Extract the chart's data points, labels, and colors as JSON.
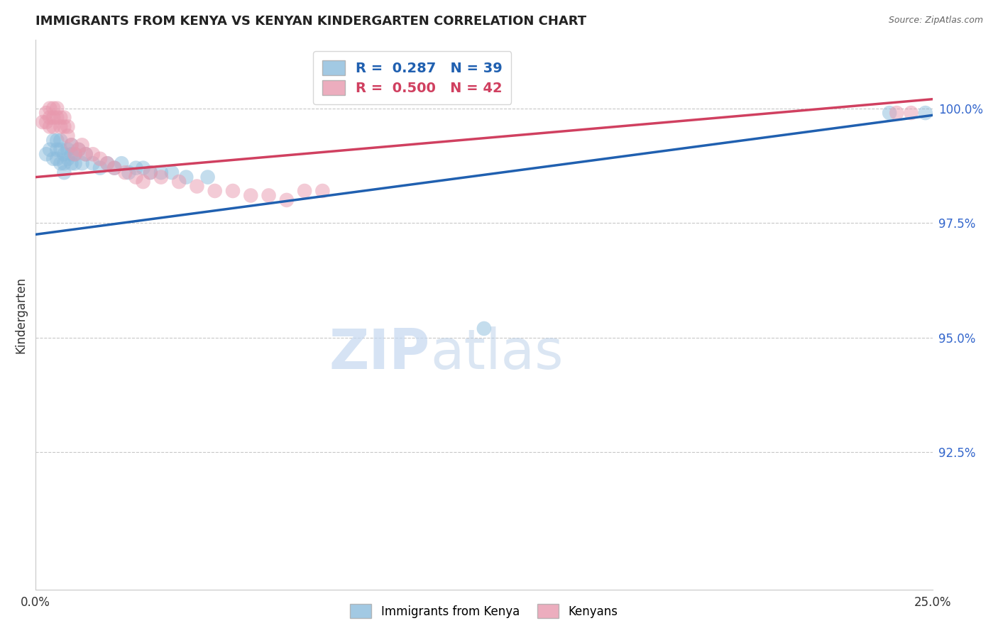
{
  "title": "IMMIGRANTS FROM KENYA VS KENYAN KINDERGARTEN CORRELATION CHART",
  "source": "Source: ZipAtlas.com",
  "ylabel": "Kindergarten",
  "xlim": [
    0.0,
    0.25
  ],
  "ylim": [
    0.895,
    1.015
  ],
  "ytick_vals": [
    0.925,
    0.95,
    0.975,
    1.0
  ],
  "ytick_labels": [
    "92.5%",
    "95.0%",
    "97.5%",
    "100.0%"
  ],
  "legend_blue": "R =  0.287   N = 39",
  "legend_pink": "R =  0.500   N = 42",
  "blue_color": "#8bbcdd",
  "pink_color": "#e899ae",
  "trendline_blue": "#2060b0",
  "trendline_pink": "#d04060",
  "watermark_zip": "ZIP",
  "watermark_atlas": "atlas",
  "blue_scatter": [
    [
      0.003,
      0.99
    ],
    [
      0.004,
      0.991
    ],
    [
      0.005,
      0.993
    ],
    [
      0.005,
      0.989
    ],
    [
      0.006,
      0.993
    ],
    [
      0.006,
      0.991
    ],
    [
      0.006,
      0.989
    ],
    [
      0.007,
      0.993
    ],
    [
      0.007,
      0.991
    ],
    [
      0.007,
      0.988
    ],
    [
      0.008,
      0.99
    ],
    [
      0.008,
      0.988
    ],
    [
      0.008,
      0.986
    ],
    [
      0.009,
      0.991
    ],
    [
      0.009,
      0.989
    ],
    [
      0.01,
      0.992
    ],
    [
      0.01,
      0.99
    ],
    [
      0.01,
      0.988
    ],
    [
      0.011,
      0.99
    ],
    [
      0.011,
      0.988
    ],
    [
      0.012,
      0.991
    ],
    [
      0.013,
      0.988
    ],
    [
      0.014,
      0.99
    ],
    [
      0.016,
      0.988
    ],
    [
      0.018,
      0.987
    ],
    [
      0.02,
      0.988
    ],
    [
      0.022,
      0.987
    ],
    [
      0.024,
      0.988
    ],
    [
      0.026,
      0.986
    ],
    [
      0.028,
      0.987
    ],
    [
      0.03,
      0.987
    ],
    [
      0.032,
      0.986
    ],
    [
      0.035,
      0.986
    ],
    [
      0.038,
      0.986
    ],
    [
      0.042,
      0.985
    ],
    [
      0.048,
      0.985
    ],
    [
      0.125,
      0.952
    ],
    [
      0.238,
      0.999
    ],
    [
      0.248,
      0.999
    ]
  ],
  "pink_scatter": [
    [
      0.002,
      0.997
    ],
    [
      0.003,
      0.999
    ],
    [
      0.003,
      0.997
    ],
    [
      0.004,
      1.0
    ],
    [
      0.004,
      0.998
    ],
    [
      0.004,
      0.996
    ],
    [
      0.005,
      1.0
    ],
    [
      0.005,
      0.998
    ],
    [
      0.005,
      0.996
    ],
    [
      0.006,
      1.0
    ],
    [
      0.006,
      0.998
    ],
    [
      0.007,
      0.998
    ],
    [
      0.007,
      0.996
    ],
    [
      0.008,
      0.998
    ],
    [
      0.008,
      0.996
    ],
    [
      0.009,
      0.996
    ],
    [
      0.009,
      0.994
    ],
    [
      0.01,
      0.992
    ],
    [
      0.011,
      0.99
    ],
    [
      0.012,
      0.991
    ],
    [
      0.013,
      0.992
    ],
    [
      0.014,
      0.99
    ],
    [
      0.016,
      0.99
    ],
    [
      0.018,
      0.989
    ],
    [
      0.02,
      0.988
    ],
    [
      0.022,
      0.987
    ],
    [
      0.025,
      0.986
    ],
    [
      0.028,
      0.985
    ],
    [
      0.03,
      0.984
    ],
    [
      0.032,
      0.986
    ],
    [
      0.035,
      0.985
    ],
    [
      0.04,
      0.984
    ],
    [
      0.045,
      0.983
    ],
    [
      0.05,
      0.982
    ],
    [
      0.055,
      0.982
    ],
    [
      0.06,
      0.981
    ],
    [
      0.065,
      0.981
    ],
    [
      0.07,
      0.98
    ],
    [
      0.075,
      0.982
    ],
    [
      0.08,
      0.982
    ],
    [
      0.24,
      0.999
    ],
    [
      0.244,
      0.999
    ]
  ],
  "blue_trendline_x": [
    0.0,
    0.25
  ],
  "blue_trendline_y": [
    0.9725,
    0.9985
  ],
  "pink_trendline_x": [
    0.0,
    0.25
  ],
  "pink_trendline_y": [
    0.985,
    1.002
  ]
}
